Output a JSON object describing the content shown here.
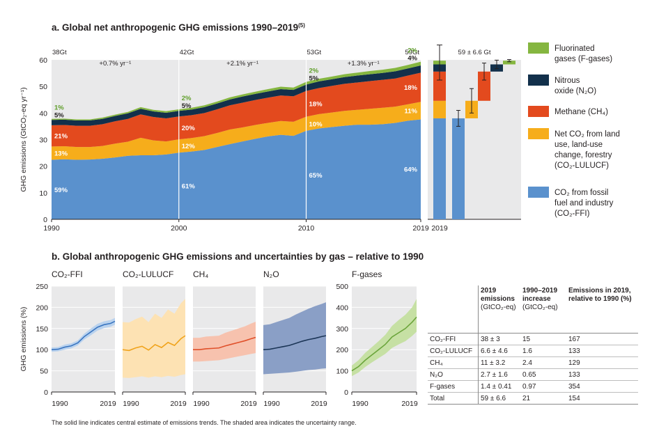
{
  "chart_data": [
    {
      "type": "area",
      "id": "a",
      "title": "a. Global net anthropogenic GHG emissions 1990–2019",
      "title_superscript": "(5)",
      "ylabel": "GHG emissions (GtCO₂-eq yr⁻¹)",
      "ylim": [
        0,
        60
      ],
      "yticks": [
        0,
        10,
        20,
        30,
        40,
        50,
        60
      ],
      "xticks": [
        "1990",
        "2000",
        "2010",
        "2019"
      ],
      "x": [
        1990,
        1991,
        1992,
        1993,
        1994,
        1995,
        1996,
        1997,
        1998,
        1999,
        2000,
        2001,
        2002,
        2003,
        2004,
        2005,
        2006,
        2007,
        2008,
        2009,
        2010,
        2011,
        2012,
        2013,
        2014,
        2015,
        2016,
        2017,
        2018,
        2019
      ],
      "series": [
        {
          "name": "CO₂ from fossil fuel and industry (CO₂-FFI)",
          "color": "#5a91cd",
          "values": [
            22.4,
            22.6,
            22.4,
            22.5,
            22.8,
            23.3,
            23.9,
            24.1,
            24.1,
            24.4,
            25.1,
            25.5,
            26.1,
            27.2,
            28.3,
            29.3,
            30.3,
            31.2,
            31.8,
            31.4,
            33.3,
            34.2,
            34.7,
            35.2,
            35.6,
            35.6,
            35.8,
            36.3,
            37.1,
            37.6
          ]
        },
        {
          "name": "Net CO₂ from land use, land-use change, forestry (CO₂-LULUCF)",
          "color": "#f6ad1b",
          "values": [
            5.0,
            4.9,
            4.8,
            4.7,
            4.8,
            5.2,
            5.3,
            6.6,
            5.6,
            4.9,
            5.0,
            5.1,
            5.2,
            5.3,
            5.5,
            5.3,
            5.2,
            5.1,
            5.2,
            5.3,
            5.3,
            5.4,
            5.5,
            5.6,
            5.6,
            6.0,
            6.2,
            6.1,
            6.2,
            6.6
          ]
        },
        {
          "name": "Methane (CH₄)",
          "color": "#e34a1e",
          "values": [
            8.0,
            8.0,
            8.0,
            8.0,
            8.2,
            8.4,
            8.6,
            8.8,
            8.8,
            8.7,
            8.6,
            8.6,
            8.7,
            8.9,
            9.1,
            9.3,
            9.4,
            9.5,
            9.6,
            9.6,
            9.7,
            9.8,
            10.0,
            10.2,
            10.3,
            10.4,
            10.5,
            10.6,
            10.8,
            11.0
          ]
        },
        {
          "name": "Nitrous oxide (N₂O)",
          "color": "#12304b",
          "values": [
            2.0,
            2.0,
            2.0,
            2.0,
            2.0,
            2.0,
            2.1,
            2.1,
            2.1,
            2.1,
            2.1,
            2.1,
            2.2,
            2.2,
            2.2,
            2.3,
            2.3,
            2.3,
            2.4,
            2.4,
            2.4,
            2.5,
            2.5,
            2.5,
            2.6,
            2.6,
            2.6,
            2.7,
            2.7,
            2.7
          ]
        },
        {
          "name": "Fluorinated gases (F-gases)",
          "color": "#85b640",
          "values": [
            0.4,
            0.4,
            0.4,
            0.4,
            0.5,
            0.5,
            0.5,
            0.6,
            0.6,
            0.6,
            0.6,
            0.7,
            0.7,
            0.7,
            0.8,
            0.8,
            0.8,
            0.9,
            0.9,
            0.9,
            1.0,
            1.0,
            1.0,
            1.1,
            1.1,
            1.2,
            1.2,
            1.3,
            1.3,
            1.4
          ]
        }
      ],
      "totals": [
        {
          "year": "1990",
          "label": "38Gt"
        },
        {
          "year": "2000",
          "label": "42Gt"
        },
        {
          "year": "2010",
          "label": "53Gt"
        },
        {
          "year": "2019",
          "label": "59Gt"
        }
      ],
      "growth_rates": [
        "+0.7% yr⁻¹",
        "+2.1% yr⁻¹",
        "+1.3% yr⁻¹"
      ],
      "shares": [
        {
          "year": "1990",
          "ffi": "59%",
          "lulucf": "13%",
          "ch4": "21%",
          "n2o": "5%",
          "fgas": "1%"
        },
        {
          "year": "2000",
          "ffi": "61%",
          "lulucf": "12%",
          "ch4": "20%",
          "n2o": "5%",
          "fgas": "2%"
        },
        {
          "year": "2010",
          "ffi": "65%",
          "lulucf": "10%",
          "ch4": "18%",
          "n2o": "5%",
          "fgas": "2%"
        },
        {
          "year": "2019",
          "ffi": "64%",
          "lulucf": "11%",
          "ch4": "18%",
          "n2o": "4%",
          "fgas": "2%"
        }
      ]
    },
    {
      "type": "bar",
      "id": "a-2019",
      "title": "59 ± 6.6 Gt",
      "xlabel": "2019",
      "stacked_total": 59,
      "components": [
        {
          "name": "CO₂-FFI",
          "value": 38,
          "lo": 35,
          "hi": 41,
          "color": "#5a91cd"
        },
        {
          "name": "CO₂-LULUCF",
          "value": 6.6,
          "lo": 2.0,
          "hi": 11.2,
          "color": "#f6ad1b"
        },
        {
          "name": "CH₄",
          "value": 11,
          "lo": 7.8,
          "hi": 14.2,
          "color": "#e34a1e"
        },
        {
          "name": "N₂O",
          "value": 2.7,
          "lo": 1.1,
          "hi": 4.3,
          "color": "#12304b"
        },
        {
          "name": "F-gases",
          "value": 1.4,
          "lo": 0.99,
          "hi": 1.81,
          "color": "#85b640"
        }
      ]
    },
    {
      "type": "line",
      "id": "b",
      "title": "b. Global anthropogenic GHG emissions and uncertainties by gas – relative to 1990",
      "ylabel": "GHG emissions (%)",
      "x": [
        1990,
        1993,
        1996,
        1999,
        2002,
        2005,
        2008,
        2011,
        2014,
        2017,
        2019
      ],
      "panels": [
        {
          "name": "CO₂-FFI",
          "ylim": [
            0,
            250
          ],
          "yticks": [
            0,
            50,
            100,
            150,
            200,
            250
          ],
          "color": "#3a75c0",
          "band": "#b9d2ee",
          "values": [
            100,
            101,
            106,
            109,
            116,
            131,
            142,
            153,
            159,
            162,
            167
          ],
          "lower": [
            95,
            96,
            100,
            103,
            110,
            124,
            134,
            145,
            151,
            154,
            159
          ],
          "upper": [
            105,
            106,
            112,
            115,
            122,
            138,
            150,
            161,
            167,
            170,
            175
          ]
        },
        {
          "name": "CO₂-LULUCF",
          "ylim": [
            0,
            250
          ],
          "color": "#f0a31b",
          "band": "#fde2b3",
          "values": [
            100,
            98,
            104,
            108,
            99,
            112,
            105,
            117,
            110,
            126,
            133
          ],
          "lower": [
            34,
            33,
            35,
            37,
            34,
            37,
            35,
            38,
            36,
            40,
            42
          ],
          "upper": [
            165,
            164,
            172,
            178,
            165,
            185,
            175,
            195,
            185,
            210,
            220
          ]
        },
        {
          "name": "CH₄",
          "ylim": [
            0,
            250
          ],
          "color": "#e0502a",
          "band": "#f7c2ae",
          "values": [
            100,
            100,
            102,
            103,
            104,
            109,
            113,
            117,
            121,
            126,
            129
          ],
          "lower": [
            72,
            72,
            73,
            74,
            75,
            78,
            81,
            84,
            87,
            90,
            92
          ],
          "upper": [
            128,
            128,
            131,
            132,
            133,
            140,
            145,
            150,
            155,
            162,
            166
          ]
        },
        {
          "name": "N₂O",
          "ylim": [
            0,
            250
          ],
          "color": "#1b3556",
          "band": "#8a9fc6",
          "values": [
            100,
            101,
            104,
            107,
            110,
            115,
            120,
            124,
            127,
            131,
            133
          ],
          "lower": [
            42,
            43,
            44,
            45,
            46,
            48,
            50,
            52,
            53,
            55,
            56
          ],
          "upper": [
            158,
            160,
            165,
            170,
            175,
            183,
            190,
            197,
            203,
            208,
            212
          ]
        },
        {
          "name": "F-gases",
          "ylim": [
            0,
            500
          ],
          "yticks": [
            0,
            100,
            200,
            300,
            400,
            500
          ],
          "color": "#6aa43a",
          "band": "#c6e0a4",
          "values": [
            100,
            120,
            150,
            175,
            200,
            225,
            260,
            280,
            300,
            330,
            354
          ],
          "lower": [
            75,
            92,
            118,
            140,
            160,
            180,
            208,
            225,
            240,
            265,
            285
          ],
          "upper": [
            125,
            150,
            185,
            212,
            240,
            270,
            312,
            340,
            365,
            400,
            440
          ]
        }
      ]
    }
  ],
  "legend": [
    {
      "name": "Fluorinated gases (F-gases)",
      "lines": [
        "Fluorinated",
        "gases (F-gases)"
      ],
      "color": "#85b640"
    },
    {
      "name": "Nitrous oxide (N₂O)",
      "lines": [
        "Nitrous",
        "oxide (N₂O)"
      ],
      "color": "#12304b"
    },
    {
      "name": "Methane (CH₄)",
      "lines": [
        "Methane (CH₄)"
      ],
      "color": "#e34a1e"
    },
    {
      "name": "Net CO₂ from land use, land-use change, forestry (CO₂-LULUCF)",
      "lines": [
        "Net CO₂ from land",
        "use, land-use",
        "change, forestry",
        "(CO₂-LULUCF)"
      ],
      "color": "#f6ad1b"
    },
    {
      "name": "CO₂ from fossil fuel and industry (CO₂-FFI)",
      "lines": [
        "CO₂ from fossil",
        "fuel and industry",
        "(CO₂-FFI)"
      ],
      "color": "#5a91cd"
    }
  ],
  "table": {
    "headers": [
      {
        "label": "",
        "unit": ""
      },
      {
        "label": "2019 emissions",
        "unit": "(GtCO₂-eq)"
      },
      {
        "label": "1990–2019 increase",
        "unit": "(GtCO₂-eq)"
      },
      {
        "label": "Emissions in 2019, relative to 1990 (%)",
        "unit": ""
      }
    ],
    "rows": [
      [
        "CO₂-FFI",
        "38 ± 3",
        "15",
        "167"
      ],
      [
        "CO₂-LULUCF",
        "6.6 ± 4.6",
        "1.6",
        "133"
      ],
      [
        "CH₄",
        "11 ± 3.2",
        "2.4",
        "129"
      ],
      [
        "N₂O",
        "2.7 ± 1.6",
        "0.65",
        "133"
      ],
      [
        "F-gases",
        "1.4 ± 0.41",
        "0.97",
        "354"
      ],
      [
        "Total",
        "59 ± 6.6",
        "21",
        "154"
      ]
    ]
  },
  "footnote": "The solid line indicates central estimate of emissions trends. The shaded area indicates the uncertainty range."
}
